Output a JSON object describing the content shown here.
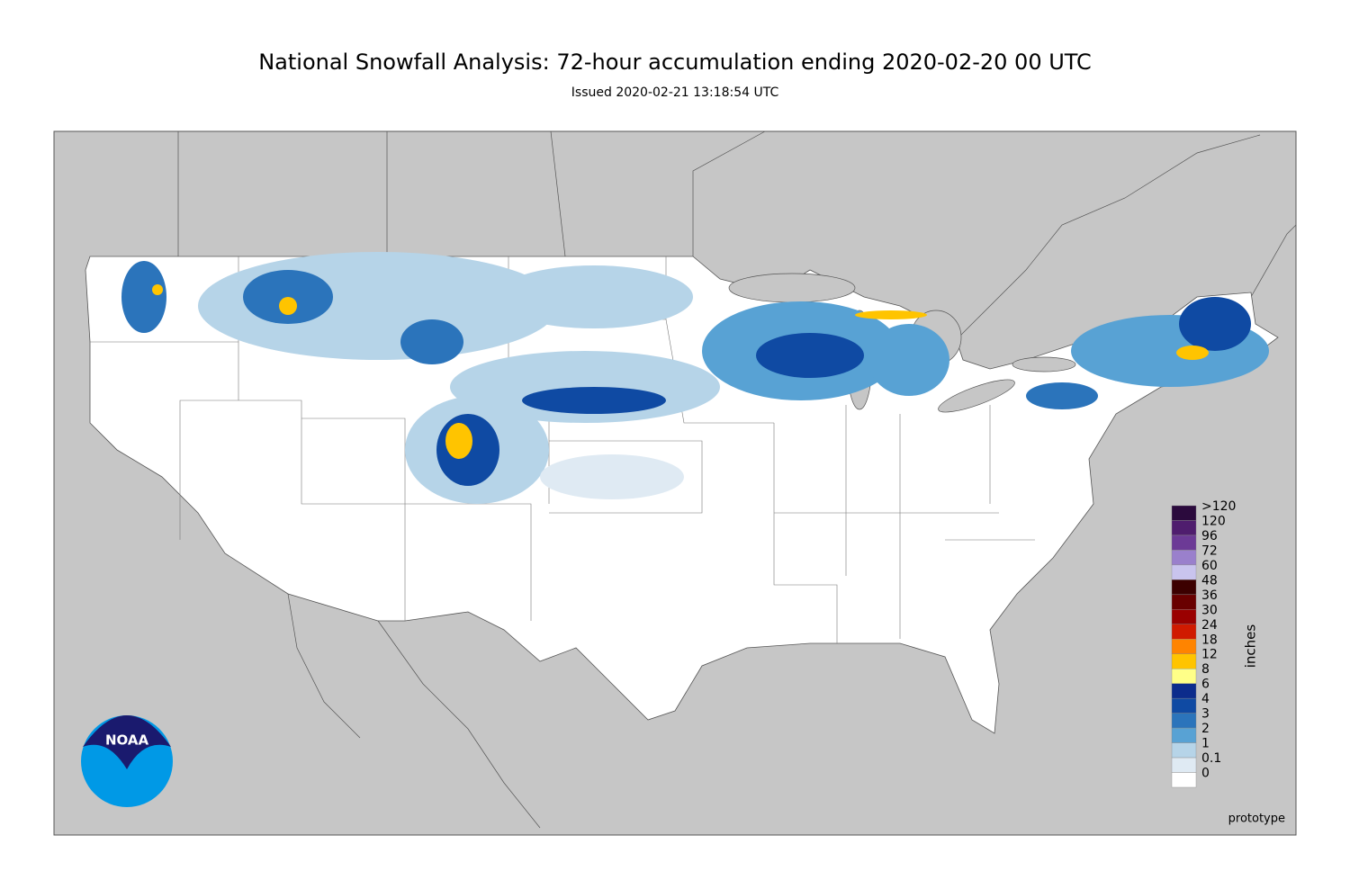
{
  "title": "National Snowfall Analysis: 72-hour accumulation ending 2020-02-20 00 UTC",
  "subtitle": "Issued 2020-02-21 13:18:54 UTC",
  "logo": "NOAA",
  "note": "prototype",
  "legend": {
    "label": "inches",
    "levels": [
      {
        "label": ">120",
        "color": "#2b0a3d"
      },
      {
        "label": "120",
        "color": "#4f1d6e"
      },
      {
        "label": "96",
        "color": "#6c3a96"
      },
      {
        "label": "72",
        "color": "#9a80cc"
      },
      {
        "label": "60",
        "color": "#c9c4ee"
      },
      {
        "label": "48",
        "color": "#3c0000"
      },
      {
        "label": "36",
        "color": "#690000"
      },
      {
        "label": "30",
        "color": "#9a0000"
      },
      {
        "label": "24",
        "color": "#d01a00"
      },
      {
        "label": "18",
        "color": "#ff8400"
      },
      {
        "label": "12",
        "color": "#ffc400"
      },
      {
        "label": "8",
        "color": "#ffff88"
      },
      {
        "label": "6",
        "color": "#0c2c8c"
      },
      {
        "label": "4",
        "color": "#0f4aa3"
      },
      {
        "label": "3",
        "color": "#2b74bb"
      },
      {
        "label": "2",
        "color": "#58a2d4"
      },
      {
        "label": "1",
        "color": "#b6d4e8"
      },
      {
        "label": "0.1",
        "color": "#dfeaf3"
      },
      {
        "label": "0",
        "color": "#ffffff"
      }
    ]
  }
}
